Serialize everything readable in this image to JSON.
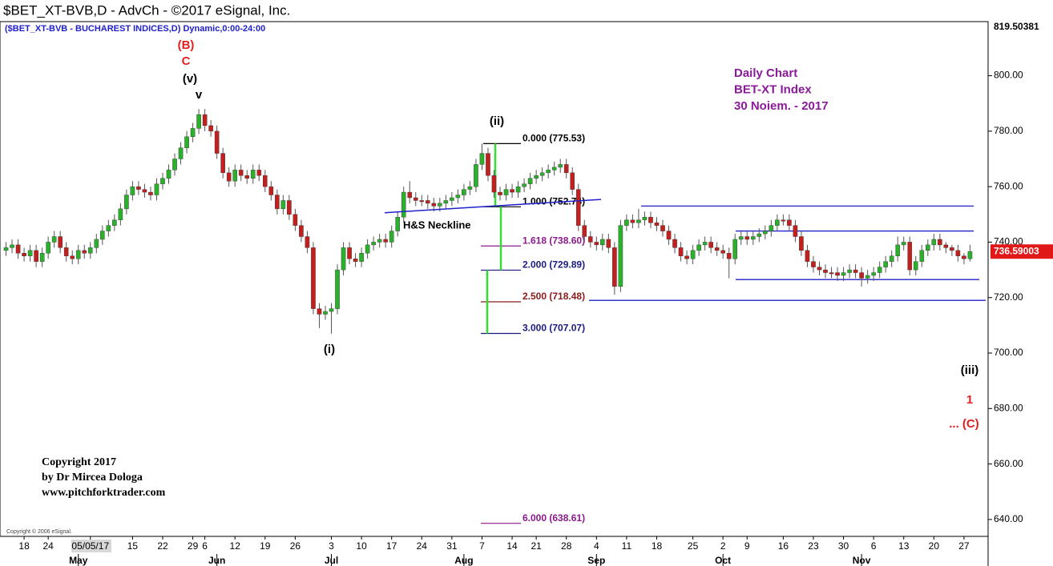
{
  "chart_data": {
    "type": "candlestick",
    "title": "$BET_XT-BVB,D - AdvCh - ©2017 eSignal, Inc.",
    "subtitle": "($BET_XT-BVB - BUCHAREST INDICES,D) Dynamic,0:00-24:00",
    "up_color": "#2bb02b",
    "down_color": "#c21f1f",
    "xlim": [
      -1,
      163
    ],
    "ylim": [
      633.9,
      819.50381
    ],
    "yticks": [
      {
        "value": 640,
        "label": "640.00"
      },
      {
        "value": 660,
        "label": "660.00"
      },
      {
        "value": 680,
        "label": "680.00"
      },
      {
        "value": 700,
        "label": "700.00"
      },
      {
        "value": 720,
        "label": "720.00"
      },
      {
        "value": 740,
        "label": "740.00"
      },
      {
        "value": 760,
        "label": "760.00"
      },
      {
        "value": 780,
        "label": "780.00"
      },
      {
        "value": 800,
        "label": "800.00"
      }
    ],
    "xticks": [
      {
        "value": 3,
        "label": "18"
      },
      {
        "value": 7,
        "label": "24"
      },
      {
        "value": 14,
        "label": "05/05/17"
      },
      {
        "value": 21,
        "label": "15"
      },
      {
        "value": 26,
        "label": "22"
      },
      {
        "value": 31,
        "label": "29"
      },
      {
        "value": 33,
        "label": "6"
      },
      {
        "value": 38,
        "label": "12"
      },
      {
        "value": 43,
        "label": "19"
      },
      {
        "value": 48,
        "label": "26"
      },
      {
        "value": 54,
        "label": "3"
      },
      {
        "value": 59,
        "label": "10"
      },
      {
        "value": 64,
        "label": "17"
      },
      {
        "value": 69,
        "label": "24"
      },
      {
        "value": 74,
        "label": "31"
      },
      {
        "value": 79,
        "label": "7"
      },
      {
        "value": 84,
        "label": "14"
      },
      {
        "value": 88,
        "label": "21"
      },
      {
        "value": 93,
        "label": "28"
      },
      {
        "value": 98,
        "label": "4"
      },
      {
        "value": 103,
        "label": "11"
      },
      {
        "value": 108,
        "label": "18"
      },
      {
        "value": 114,
        "label": "25"
      },
      {
        "value": 119,
        "label": "2"
      },
      {
        "value": 123,
        "label": "9"
      },
      {
        "value": 129,
        "label": "16"
      },
      {
        "value": 134,
        "label": "23"
      },
      {
        "value": 139,
        "label": "30"
      },
      {
        "value": 144,
        "label": "6"
      },
      {
        "value": 149,
        "label": "13"
      },
      {
        "value": 154,
        "label": "20"
      },
      {
        "value": 159,
        "label": "27"
      }
    ],
    "month_ticks": [
      {
        "value": 12,
        "label": "May"
      },
      {
        "value": 35,
        "label": "Jun"
      },
      {
        "value": 54,
        "label": "Jul"
      },
      {
        "value": 76,
        "label": "Aug"
      },
      {
        "value": 98,
        "label": "Sep"
      },
      {
        "value": 119,
        "label": "Oct"
      },
      {
        "value": 142,
        "label": "Nov"
      }
    ],
    "open": [
      737,
      738,
      739,
      736,
      735,
      737,
      733,
      736,
      740,
      742,
      738,
      735,
      734,
      737,
      736,
      738,
      741,
      744,
      746,
      748,
      752,
      757,
      760,
      759,
      758,
      757,
      761,
      763,
      766,
      770,
      774,
      778,
      781,
      786,
      782,
      780,
      772,
      765,
      762,
      766,
      764,
      763,
      766,
      764,
      760,
      757,
      752,
      755,
      750,
      746,
      742,
      738,
      716,
      714,
      715,
      716,
      730,
      738,
      734,
      733,
      736,
      739,
      740,
      741,
      740,
      744,
      749,
      758,
      756,
      755,
      755,
      754,
      753,
      754,
      755,
      756,
      757,
      759,
      760,
      768,
      772,
      764,
      758,
      757,
      759,
      758,
      760,
      761,
      763,
      764,
      765,
      766,
      767,
      768,
      765,
      759,
      746,
      742,
      740,
      739,
      741,
      738,
      724,
      746,
      748,
      747,
      748,
      749,
      747,
      746,
      744,
      741,
      738,
      735,
      734,
      737,
      739,
      740,
      738,
      737,
      736,
      734,
      741,
      742,
      741,
      742,
      743,
      744,
      746,
      748,
      748,
      746,
      742,
      737,
      733,
      731,
      730,
      729,
      729,
      728,
      729,
      730,
      729,
      727,
      728,
      729,
      731,
      733,
      735,
      739,
      740,
      730,
      733,
      737,
      739,
      741,
      739,
      738,
      737,
      735,
      734
    ],
    "high": [
      740,
      741,
      741,
      738,
      739,
      739,
      738,
      742,
      744,
      744,
      740,
      737,
      739,
      739,
      740,
      743,
      746,
      748,
      750,
      754,
      759,
      762,
      762,
      761,
      760,
      763,
      765,
      768,
      772,
      776,
      780,
      783,
      788,
      788,
      784,
      782,
      774,
      767,
      768,
      768,
      766,
      768,
      768,
      766,
      762,
      759,
      757,
      757,
      752,
      748,
      744,
      740,
      718,
      717,
      718,
      732,
      740,
      740,
      736,
      738,
      741,
      742,
      743,
      743,
      746,
      751,
      760,
      762,
      758,
      757,
      757,
      756,
      756,
      757,
      758,
      759,
      761,
      762,
      770,
      775.5,
      774,
      766,
      760,
      761,
      761,
      762,
      763,
      765,
      766,
      767,
      768,
      769,
      770,
      770,
      767,
      761,
      748,
      744,
      742,
      743,
      743,
      740,
      748,
      750,
      750,
      752,
      751,
      751,
      749,
      748,
      746,
      743,
      740,
      737,
      739,
      741,
      742,
      742,
      740,
      739,
      738,
      743,
      744,
      744,
      744,
      745,
      746,
      748,
      750,
      750,
      750,
      748,
      744,
      739,
      735,
      733,
      732,
      731,
      731,
      731,
      732,
      732,
      731,
      730,
      731,
      733,
      735,
      737,
      742,
      742,
      742,
      735,
      739,
      741,
      743,
      743,
      740,
      739,
      739,
      736,
      739
    ],
    "low": [
      735,
      736,
      734,
      733,
      733,
      731,
      731,
      734,
      738,
      736,
      733,
      732,
      732,
      734,
      734,
      736,
      739,
      742,
      744,
      746,
      750,
      755,
      757,
      756,
      755,
      755,
      759,
      761,
      764,
      768,
      772,
      776,
      779,
      780,
      778,
      770,
      763,
      760,
      760,
      762,
      761,
      761,
      762,
      758,
      755,
      750,
      750,
      748,
      744,
      740,
      736,
      714,
      709,
      712,
      707,
      714,
      728,
      732,
      731,
      731,
      734,
      737,
      738,
      738,
      738,
      742,
      747,
      754,
      753,
      753,
      752,
      751,
      751,
      752,
      753,
      754,
      755,
      757,
      758,
      766,
      762,
      756,
      755,
      755,
      756,
      756,
      758,
      759,
      761,
      762,
      763,
      764,
      765,
      763,
      757,
      744,
      740,
      738,
      737,
      737,
      736,
      721,
      722,
      744,
      745,
      745,
      746,
      745,
      744,
      742,
      739,
      736,
      733,
      732,
      732,
      735,
      737,
      736,
      735,
      734,
      727,
      732,
      739,
      739,
      739,
      740,
      741,
      742,
      744,
      746,
      744,
      740,
      735,
      731,
      729,
      728,
      727,
      727,
      726,
      726,
      727,
      727,
      724,
      725,
      726,
      727,
      729,
      731,
      733,
      737,
      728,
      728,
      731,
      735,
      737,
      737,
      736,
      735,
      733,
      732,
      733
    ],
    "close": [
      738,
      739,
      736,
      735,
      737,
      733,
      736,
      740,
      742,
      738,
      735,
      734,
      737,
      736,
      738,
      741,
      744,
      746,
      748,
      752,
      757,
      760,
      759,
      758,
      757,
      761,
      763,
      766,
      770,
      774,
      778,
      781,
      786,
      782,
      780,
      772,
      765,
      762,
      766,
      764,
      763,
      766,
      764,
      760,
      757,
      752,
      755,
      750,
      746,
      742,
      738,
      716,
      714,
      715,
      716,
      730,
      738,
      734,
      733,
      736,
      739,
      740,
      741,
      740,
      744,
      749,
      758,
      756,
      755,
      755,
      754,
      753,
      754,
      755,
      756,
      757,
      759,
      760,
      768,
      772,
      764,
      758,
      757,
      759,
      758,
      760,
      761,
      763,
      764,
      765,
      766,
      767,
      768,
      765,
      759,
      746,
      742,
      740,
      739,
      741,
      738,
      724,
      746,
      748,
      747,
      748,
      749,
      747,
      746,
      744,
      741,
      738,
      735,
      734,
      737,
      739,
      740,
      738,
      737,
      736,
      734,
      741,
      742,
      741,
      742,
      743,
      744,
      746,
      748,
      748,
      746,
      742,
      737,
      733,
      731,
      730,
      729,
      729,
      728,
      729,
      730,
      729,
      727,
      728,
      729,
      731,
      733,
      735,
      739,
      740,
      730,
      733,
      737,
      739,
      741,
      739,
      738,
      737,
      735,
      734,
      736.59
    ],
    "last_price": {
      "value": 736.59003,
      "label": "736.59003"
    },
    "fib_levels": [
      {
        "label": "0.000 (775.53)",
        "value": 775.53,
        "color": "#000000"
      },
      {
        "label": "1.000 (752.74)",
        "value": 752.74,
        "color": "#000000"
      },
      {
        "label": "1.618 (738.60)",
        "value": 738.6,
        "color": "#8b1a8b"
      },
      {
        "label": "2.000 (729.89)",
        "value": 729.89,
        "color": "#1a1a80"
      },
      {
        "label": "2.500 (718.48)",
        "value": 718.48,
        "color": "#8b1a1a"
      },
      {
        "label": "3.000 (707.07)",
        "value": 707.07,
        "color": "#1a1a80"
      },
      {
        "label": "6.000 (638.61)",
        "value": 638.61,
        "color": "#8b1a8b"
      }
    ],
    "measure_color": "#33dd33",
    "level_lines": [
      753,
      744,
      726.5,
      719
    ],
    "level_color": "#2020cc",
    "neckline": {
      "label": "H&S Neckline",
      "values": [
        750.6,
        755.4
      ]
    },
    "annotations": [
      {
        "text": "(B)",
        "color": "#e02020"
      },
      {
        "text": "C",
        "color": "#e02020"
      },
      {
        "text": "(v)",
        "color": "#000000"
      },
      {
        "text": "v",
        "color": "#000000"
      },
      {
        "text": "(ii)",
        "color": "#000000"
      },
      {
        "text": "(i)",
        "color": "#000000"
      },
      {
        "text": "(iii)",
        "color": "#000000"
      },
      {
        "text": "1",
        "color": "#e02020"
      },
      {
        "text": "... (C)",
        "color": "#e02020"
      }
    ],
    "info_box": [
      "Daily Chart",
      "BET-XT Index",
      "30 Noiem. - 2017"
    ],
    "info_color": "#8b1a9b",
    "copyright_block": [
      "Copyright 2017",
      "by Dr Mircea Dologa",
      "www.pitchforktrader.com"
    ],
    "vendor_note": "Copyright © 2006 eSignal."
  }
}
